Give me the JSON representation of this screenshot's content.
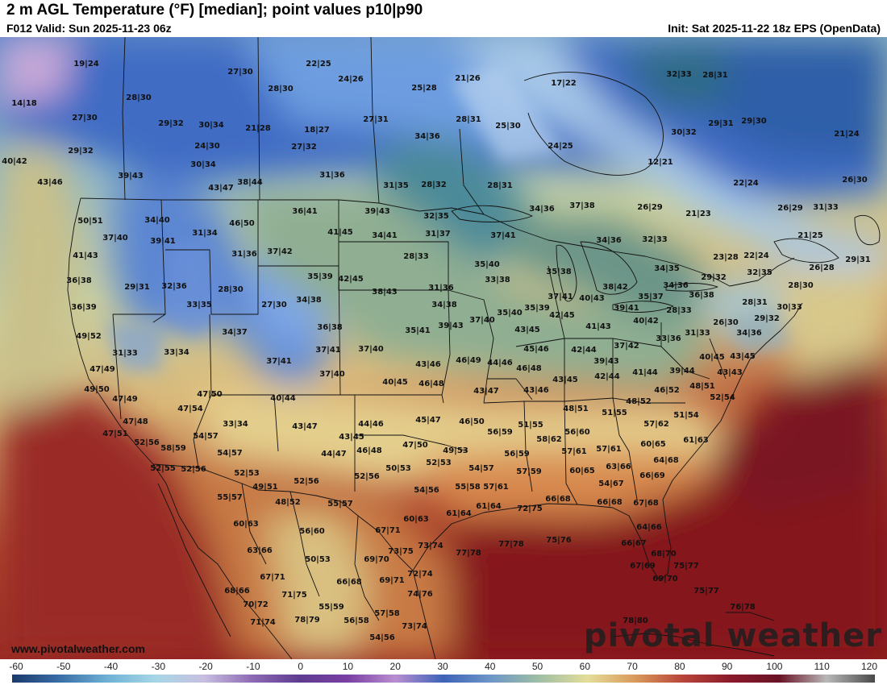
{
  "header": {
    "title": "2 m AGL Temperature (°F) [median]; point values p10|p90",
    "valid": "F012 Valid: Sun 2025-11-23 06z",
    "init": "Init: Sat 2025-11-22 18z EPS (OpenData)"
  },
  "branding": {
    "watermark": "pivotal weather",
    "website": "www.pivotalweather.com"
  },
  "colorbar": {
    "ticks": [
      "-60",
      "-50",
      "-40",
      "-30",
      "-20",
      "-10",
      "0",
      "10",
      "20",
      "30",
      "40",
      "50",
      "60",
      "70",
      "80",
      "90",
      "100",
      "110",
      "120"
    ],
    "colors": [
      "#1a3a6b",
      "#3a6fa8",
      "#6fb2d6",
      "#a7d7e6",
      "#c8bfe0",
      "#8e6ab5",
      "#5e3c8f",
      "#7a3fa3",
      "#b98ed1",
      "#3d63b8",
      "#6f97c7",
      "#9fbfa4",
      "#e5dd9a",
      "#d99a5a",
      "#b8443a",
      "#8a1a2a",
      "#6a1226",
      "#b8b8b8",
      "#4a4a4a"
    ]
  },
  "points": [
    [
      "19|24",
      107,
      82
    ],
    [
      "27|30",
      298,
      92
    ],
    [
      "22|25",
      395,
      82
    ],
    [
      "24|26",
      435,
      101
    ],
    [
      "28|30",
      348,
      113
    ],
    [
      "25|28",
      526,
      112
    ],
    [
      "21|26",
      580,
      100
    ],
    [
      "17|22",
      699,
      106
    ],
    [
      "32|33",
      842,
      95
    ],
    [
      "28|31",
      887,
      96
    ],
    [
      "14|18",
      30,
      131
    ],
    [
      "28|30",
      172,
      124
    ],
    [
      "27|30",
      105,
      149
    ],
    [
      "29|32",
      212,
      156
    ],
    [
      "30|34",
      262,
      158
    ],
    [
      "21|28",
      320,
      162
    ],
    [
      "18|27",
      393,
      164
    ],
    [
      "27|31",
      466,
      151
    ],
    [
      "28|31",
      581,
      151
    ],
    [
      "25|30",
      630,
      159
    ],
    [
      "30|32",
      848,
      167
    ],
    [
      "29|31",
      894,
      156
    ],
    [
      "29|30",
      935,
      153
    ],
    [
      "21|24",
      1050,
      169
    ],
    [
      "29|32",
      100,
      190
    ],
    [
      "24|30",
      257,
      184
    ],
    [
      "27|32",
      377,
      185
    ],
    [
      "34|36",
      530,
      172
    ],
    [
      "24|25",
      695,
      184
    ],
    [
      "12|21",
      819,
      204
    ],
    [
      "40|42",
      18,
      203
    ],
    [
      "30|34",
      252,
      207
    ],
    [
      "39|43",
      162,
      221
    ],
    [
      "38|44",
      310,
      229
    ],
    [
      "31|36",
      412,
      220
    ],
    [
      "43|47",
      274,
      236
    ],
    [
      "31|35",
      491,
      233
    ],
    [
      "28|32",
      538,
      232
    ],
    [
      "28|31",
      620,
      233
    ],
    [
      "22|24",
      925,
      230
    ],
    [
      "26|30",
      1060,
      226
    ],
    [
      "43|46",
      62,
      229
    ],
    [
      "36|41",
      378,
      265
    ],
    [
      "39|43",
      468,
      265
    ],
    [
      "32|35",
      541,
      271
    ],
    [
      "34|36",
      672,
      262
    ],
    [
      "37|38",
      722,
      258
    ],
    [
      "26|29",
      806,
      260
    ],
    [
      "21|23",
      866,
      268
    ],
    [
      "26|29",
      980,
      261
    ],
    [
      "31|33",
      1024,
      260
    ],
    [
      "50|51",
      112,
      277
    ],
    [
      "34|40",
      195,
      276
    ],
    [
      "46|50",
      300,
      280
    ],
    [
      "41|45",
      422,
      291
    ],
    [
      "34|41",
      477,
      295
    ],
    [
      "31|37",
      543,
      293
    ],
    [
      "37|41",
      624,
      295
    ],
    [
      "34|36",
      755,
      301
    ],
    [
      "32|33",
      812,
      300
    ],
    [
      "21|25",
      1005,
      295
    ],
    [
      "37|40",
      143,
      298
    ],
    [
      "39|41",
      202,
      302
    ],
    [
      "31|34",
      254,
      292
    ],
    [
      "31|36",
      303,
      318
    ],
    [
      "37|42",
      347,
      315
    ],
    [
      "28|33",
      516,
      321
    ],
    [
      "35|40",
      604,
      331
    ],
    [
      "35|38",
      693,
      340
    ],
    [
      "23|28",
      900,
      322
    ],
    [
      "22|24",
      938,
      320
    ],
    [
      "32|35",
      942,
      341
    ],
    [
      "26|28",
      1019,
      335
    ],
    [
      "29|31",
      1064,
      325
    ],
    [
      "41|43",
      106,
      320
    ],
    [
      "34|35",
      827,
      336
    ],
    [
      "33|38",
      617,
      350
    ],
    [
      "29|32",
      885,
      347
    ],
    [
      "36|38",
      98,
      351
    ],
    [
      "29|31",
      170,
      359
    ],
    [
      "32|36",
      216,
      358
    ],
    [
      "28|30",
      286,
      362
    ],
    [
      "35|39",
      397,
      346
    ],
    [
      "42|45",
      435,
      349
    ],
    [
      "38|42",
      763,
      359
    ],
    [
      "34|36",
      838,
      357
    ],
    [
      "28|30",
      993,
      357
    ],
    [
      "36|39",
      104,
      384
    ],
    [
      "33|35",
      247,
      381
    ],
    [
      "27|30",
      340,
      381
    ],
    [
      "34|38",
      383,
      375
    ],
    [
      "38|43",
      477,
      365
    ],
    [
      "31|36",
      547,
      360
    ],
    [
      "34|38",
      551,
      381
    ],
    [
      "37|41",
      695,
      371
    ],
    [
      "40|43",
      734,
      373
    ],
    [
      "35|37",
      807,
      371
    ],
    [
      "36|38",
      870,
      369
    ],
    [
      "28|31",
      936,
      378
    ],
    [
      "30|33",
      979,
      384
    ],
    [
      "49|52",
      110,
      420
    ],
    [
      "34|37",
      291,
      415
    ],
    [
      "36|38",
      409,
      409
    ],
    [
      "35|41",
      518,
      413
    ],
    [
      "39|43",
      559,
      407
    ],
    [
      "37|40",
      598,
      400
    ],
    [
      "35|40",
      632,
      391
    ],
    [
      "35|39",
      666,
      385
    ],
    [
      "42|45",
      697,
      394
    ],
    [
      "39|41",
      777,
      385
    ],
    [
      "28|33",
      842,
      388
    ],
    [
      "40|42",
      801,
      401
    ],
    [
      "26|30",
      900,
      403
    ],
    [
      "29|32",
      951,
      398
    ],
    [
      "31|33",
      155,
      441
    ],
    [
      "33|34",
      219,
      440
    ],
    [
      "37|41",
      407,
      437
    ],
    [
      "37|40",
      460,
      436
    ],
    [
      "43|45",
      654,
      412
    ],
    [
      "41|43",
      742,
      408
    ],
    [
      "31|33",
      865,
      416
    ],
    [
      "33|36",
      829,
      423
    ],
    [
      "34|36",
      929,
      416
    ],
    [
      "47|49",
      127,
      461
    ],
    [
      "37|41",
      346,
      451
    ],
    [
      "43|46",
      531,
      455
    ],
    [
      "46|49",
      581,
      450
    ],
    [
      "44|46",
      620,
      453
    ],
    [
      "45|46",
      665,
      436
    ],
    [
      "42|44",
      724,
      437
    ],
    [
      "37|42",
      777,
      432
    ],
    [
      "40|45",
      883,
      446
    ],
    [
      "43|45",
      921,
      445
    ],
    [
      "49|50",
      120,
      486
    ],
    [
      "37|40",
      412,
      467
    ],
    [
      "40|45",
      490,
      477
    ],
    [
      "46|48",
      535,
      479
    ],
    [
      "46|48",
      656,
      460
    ],
    [
      "39|43",
      752,
      451
    ],
    [
      "42|44",
      753,
      470
    ],
    [
      "41|44",
      800,
      465
    ],
    [
      "39|44",
      846,
      463
    ],
    [
      "43|43",
      905,
      465
    ],
    [
      "47|49",
      155,
      498
    ],
    [
      "47|50",
      260,
      492
    ],
    [
      "40|44",
      351,
      497
    ],
    [
      "43|47",
      603,
      488
    ],
    [
      "43|46",
      665,
      487
    ],
    [
      "43|45",
      701,
      474
    ],
    [
      "46|52",
      827,
      487
    ],
    [
      "48|51",
      871,
      482
    ],
    [
      "52|54",
      896,
      496
    ],
    [
      "47|54",
      236,
      510
    ],
    [
      "48|52",
      792,
      501
    ],
    [
      "48|51",
      714,
      510
    ],
    [
      "51|55",
      762,
      515
    ],
    [
      "51|54",
      851,
      518
    ],
    [
      "47|48",
      168,
      526
    ],
    [
      "33|34",
      292,
      529
    ],
    [
      "43|47",
      378,
      532
    ],
    [
      "44|46",
      460,
      529
    ],
    [
      "45|47",
      531,
      524
    ],
    [
      "46|50",
      585,
      526
    ],
    [
      "51|55",
      658,
      530
    ],
    [
      "56|59",
      620,
      539
    ],
    [
      "56|60",
      716,
      539
    ],
    [
      "57|62",
      814,
      529
    ],
    [
      "47|51",
      143,
      541
    ],
    [
      "54|57",
      255,
      544
    ],
    [
      "43|45",
      436,
      545
    ],
    [
      "58|62",
      681,
      548
    ],
    [
      "61|63",
      863,
      549
    ],
    [
      "60|65",
      810,
      554
    ],
    [
      "52|56",
      182,
      552
    ],
    [
      "58|59",
      215,
      559
    ],
    [
      "54|57",
      285,
      565
    ],
    [
      "44|47",
      414,
      566
    ],
    [
      "46|48",
      458,
      562
    ],
    [
      "47|50",
      515,
      555
    ],
    [
      "49|53",
      565,
      562
    ],
    [
      "57|61",
      712,
      563
    ],
    [
      "57|61",
      755,
      560
    ],
    [
      "56|59",
      641,
      566
    ],
    [
      "52|55",
      202,
      584
    ],
    [
      "52|56",
      240,
      585
    ],
    [
      "52|53",
      306,
      590
    ],
    [
      "50|53",
      494,
      584
    ],
    [
      "52|53",
      544,
      577
    ],
    [
      "54|57",
      597,
      584
    ],
    [
      "57|59",
      656,
      588
    ],
    [
      "60|65",
      722,
      587
    ],
    [
      "63|66",
      767,
      582
    ],
    [
      "64|68",
      826,
      574
    ],
    [
      "49|51",
      329,
      607
    ],
    [
      "52|56",
      380,
      600
    ],
    [
      "52|56",
      455,
      594
    ],
    [
      "54|56",
      529,
      611
    ],
    [
      "55|58",
      580,
      607
    ],
    [
      "57|61",
      615,
      607
    ],
    [
      "54|67",
      758,
      603
    ],
    [
      "66|69",
      809,
      593
    ],
    [
      "55|57",
      285,
      620
    ],
    [
      "48|52",
      357,
      626
    ],
    [
      "55|57",
      422,
      628
    ],
    [
      "61|64",
      569,
      640
    ],
    [
      "61|64",
      606,
      631
    ],
    [
      "72|75",
      657,
      634
    ],
    [
      "66|68",
      692,
      622
    ],
    [
      "66|68",
      756,
      626
    ],
    [
      "67|68",
      801,
      627
    ],
    [
      "60|63",
      305,
      653
    ],
    [
      "56|60",
      387,
      662
    ],
    [
      "60|63",
      516,
      647
    ],
    [
      "64|66",
      805,
      657
    ],
    [
      "67|71",
      481,
      661
    ],
    [
      "63|66",
      322,
      686
    ],
    [
      "50|53",
      394,
      697
    ],
    [
      "73|75",
      497,
      687
    ],
    [
      "73|74",
      534,
      680
    ],
    [
      "77|78",
      581,
      689
    ],
    [
      "77|78",
      634,
      678
    ],
    [
      "75|76",
      693,
      673
    ],
    [
      "66|67",
      786,
      677
    ],
    [
      "68|70",
      823,
      690
    ],
    [
      "67|71",
      338,
      719
    ],
    [
      "66|68",
      433,
      725
    ],
    [
      "69|70",
      467,
      697
    ],
    [
      "69|71",
      486,
      723
    ],
    [
      "72|74",
      521,
      715
    ],
    [
      "67|69",
      797,
      705
    ],
    [
      "75|77",
      851,
      705
    ],
    [
      "69|70",
      825,
      721
    ],
    [
      "68|66",
      294,
      736
    ],
    [
      "71|75",
      365,
      741
    ],
    [
      "74|76",
      521,
      740
    ],
    [
      "75|77",
      876,
      736
    ],
    [
      "70|72",
      317,
      753
    ],
    [
      "55|59",
      411,
      756
    ],
    [
      "57|58",
      480,
      764
    ],
    [
      "76|78",
      921,
      756
    ],
    [
      "71|74",
      326,
      775
    ],
    [
      "78|79",
      381,
      772
    ],
    [
      "56|58",
      442,
      773
    ],
    [
      "73|74",
      514,
      780
    ],
    [
      "78|80",
      788,
      773
    ],
    [
      "54|56",
      474,
      794
    ]
  ]
}
